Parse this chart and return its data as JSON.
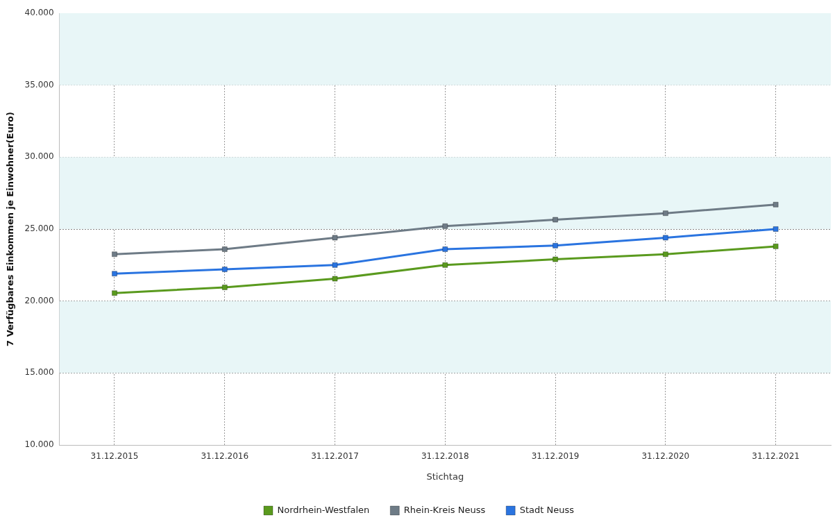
{
  "chart_data": {
    "type": "line",
    "xlabel": "Stichtag",
    "ylabel": "7 Verfügbares Einkommen je Einwohner(Euro)",
    "categories": [
      "31.12.2015",
      "31.12.2016",
      "31.12.2017",
      "31.12.2018",
      "31.12.2019",
      "31.12.2020",
      "31.12.2021"
    ],
    "series": [
      {
        "name": "Nordrhein-Westfalen",
        "color": "#5a9a1e",
        "values": [
          20550,
          20950,
          21550,
          22500,
          22900,
          23250,
          23800
        ]
      },
      {
        "name": "Rhein-Kreis Neuss",
        "color": "#6e7b86",
        "values": [
          23250,
          23600,
          24400,
          25200,
          25650,
          26100,
          26700
        ]
      },
      {
        "name": "Stadt Neuss",
        "color": "#2a74e0",
        "values": [
          21900,
          22200,
          22500,
          23600,
          23850,
          24400,
          25000
        ]
      }
    ],
    "ylim": [
      10000,
      40000
    ],
    "yticks": [
      {
        "value": 10000,
        "label": "10.000"
      },
      {
        "value": 15000,
        "label": "15.000"
      },
      {
        "value": 20000,
        "label": "20.000"
      },
      {
        "value": 25000,
        "label": "25.000"
      },
      {
        "value": 30000,
        "label": "30.000"
      },
      {
        "value": 35000,
        "label": "35.000"
      },
      {
        "value": 40000,
        "label": "40.000"
      }
    ],
    "grid": true,
    "legend": "bottom",
    "marker": "square",
    "line_style": "solid"
  }
}
